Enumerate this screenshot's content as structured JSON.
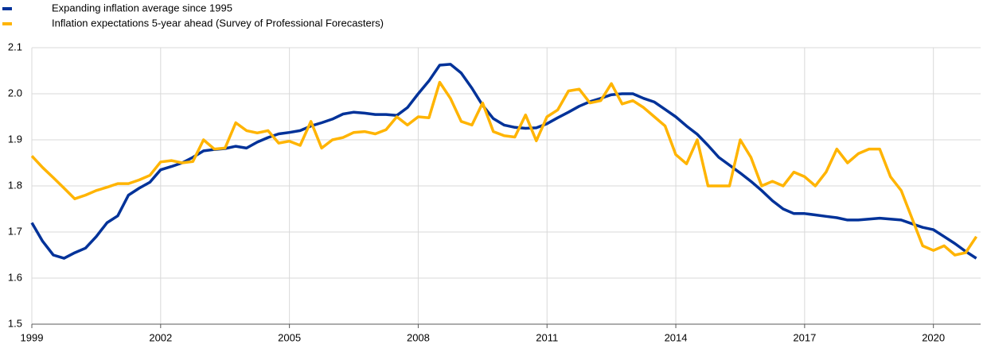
{
  "chart_data": {
    "type": "line",
    "x": [
      1999,
      1999.25,
      1999.5,
      1999.75,
      2000,
      2000.25,
      2000.5,
      2000.75,
      2001,
      2001.25,
      2001.5,
      2001.75,
      2002,
      2002.25,
      2002.5,
      2002.75,
      2003,
      2003.25,
      2003.5,
      2003.75,
      2004,
      2004.25,
      2004.5,
      2004.75,
      2005,
      2005.25,
      2005.5,
      2005.75,
      2006,
      2006.25,
      2006.5,
      2006.75,
      2007,
      2007.25,
      2007.5,
      2007.75,
      2008,
      2008.25,
      2008.5,
      2008.75,
      2009,
      2009.25,
      2009.5,
      2009.75,
      2010,
      2010.25,
      2010.5,
      2010.75,
      2011,
      2011.25,
      2011.5,
      2011.75,
      2012,
      2012.25,
      2012.5,
      2012.75,
      2013,
      2013.25,
      2013.5,
      2013.75,
      2014,
      2014.25,
      2014.5,
      2014.75,
      2015,
      2015.25,
      2015.5,
      2015.75,
      2016,
      2016.25,
      2016.5,
      2016.75,
      2017,
      2017.25,
      2017.5,
      2017.75,
      2018,
      2018.25,
      2018.5,
      2018.75,
      2019,
      2019.25,
      2019.5,
      2019.75,
      2020,
      2020.25,
      2020.5,
      2020.75,
      2021
    ],
    "series": [
      {
        "name": "Expanding inflation average since 1995",
        "color": "#003299",
        "values": [
          1.72,
          1.68,
          1.65,
          1.643,
          1.655,
          1.665,
          1.69,
          1.72,
          1.735,
          1.78,
          1.795,
          1.808,
          1.835,
          1.842,
          1.85,
          1.862,
          1.876,
          1.879,
          1.881,
          1.886,
          1.882,
          1.895,
          1.905,
          1.913,
          1.916,
          1.92,
          1.93,
          1.937,
          1.945,
          1.956,
          1.96,
          1.958,
          1.955,
          1.955,
          1.953,
          1.97,
          2.0,
          2.028,
          2.062,
          2.064,
          2.045,
          2.012,
          1.975,
          1.946,
          1.932,
          1.927,
          1.925,
          1.926,
          1.935,
          1.948,
          1.96,
          1.973,
          1.983,
          1.99,
          1.998,
          2.0,
          2.0,
          1.99,
          1.982,
          1.966,
          1.95,
          1.93,
          1.912,
          1.888,
          1.862,
          1.845,
          1.828,
          1.81,
          1.79,
          1.768,
          1.75,
          1.74,
          1.74,
          1.737,
          1.734,
          1.731,
          1.726,
          1.726,
          1.728,
          1.73,
          1.728,
          1.726,
          1.718,
          1.71,
          1.705,
          1.69,
          1.675,
          1.658,
          1.643
        ]
      },
      {
        "name": "Inflation expectations 5-year ahead (Survey of Professional Forecasters)",
        "color": "#ffb400",
        "values": [
          1.865,
          1.84,
          1.818,
          1.795,
          1.772,
          1.78,
          1.79,
          1.797,
          1.805,
          1.805,
          1.813,
          1.823,
          1.852,
          1.855,
          1.85,
          1.853,
          1.9,
          1.88,
          1.882,
          1.937,
          1.92,
          1.915,
          1.92,
          1.893,
          1.897,
          1.888,
          1.94,
          1.882,
          1.9,
          1.905,
          1.916,
          1.918,
          1.913,
          1.922,
          1.95,
          1.932,
          1.95,
          1.948,
          2.025,
          1.99,
          1.94,
          1.932,
          1.98,
          1.918,
          1.909,
          1.906,
          1.954,
          1.898,
          1.95,
          1.965,
          2.006,
          2.01,
          1.98,
          1.985,
          2.022,
          1.978,
          1.985,
          1.97,
          1.95,
          1.93,
          1.868,
          1.848,
          1.9,
          1.8,
          1.8,
          1.8,
          1.9,
          1.862,
          1.8,
          1.81,
          1.8,
          1.83,
          1.82,
          1.8,
          1.83,
          1.88,
          1.85,
          1.87,
          1.88,
          1.88,
          1.82,
          1.79,
          1.73,
          1.67,
          1.66,
          1.67,
          1.65,
          1.655,
          1.69
        ]
      }
    ],
    "xlim": [
      1999,
      2021.1
    ],
    "xticks": [
      1999,
      2002,
      2005,
      2008,
      2011,
      2014,
      2017,
      2020
    ],
    "ylim": [
      1.5,
      2.1
    ],
    "yticks": [
      1.5,
      1.6,
      1.7,
      1.8,
      1.9,
      {
        "value": 2,
        "label": "2.0"
      },
      2.1
    ],
    "grid": true,
    "legend": "top-left"
  }
}
